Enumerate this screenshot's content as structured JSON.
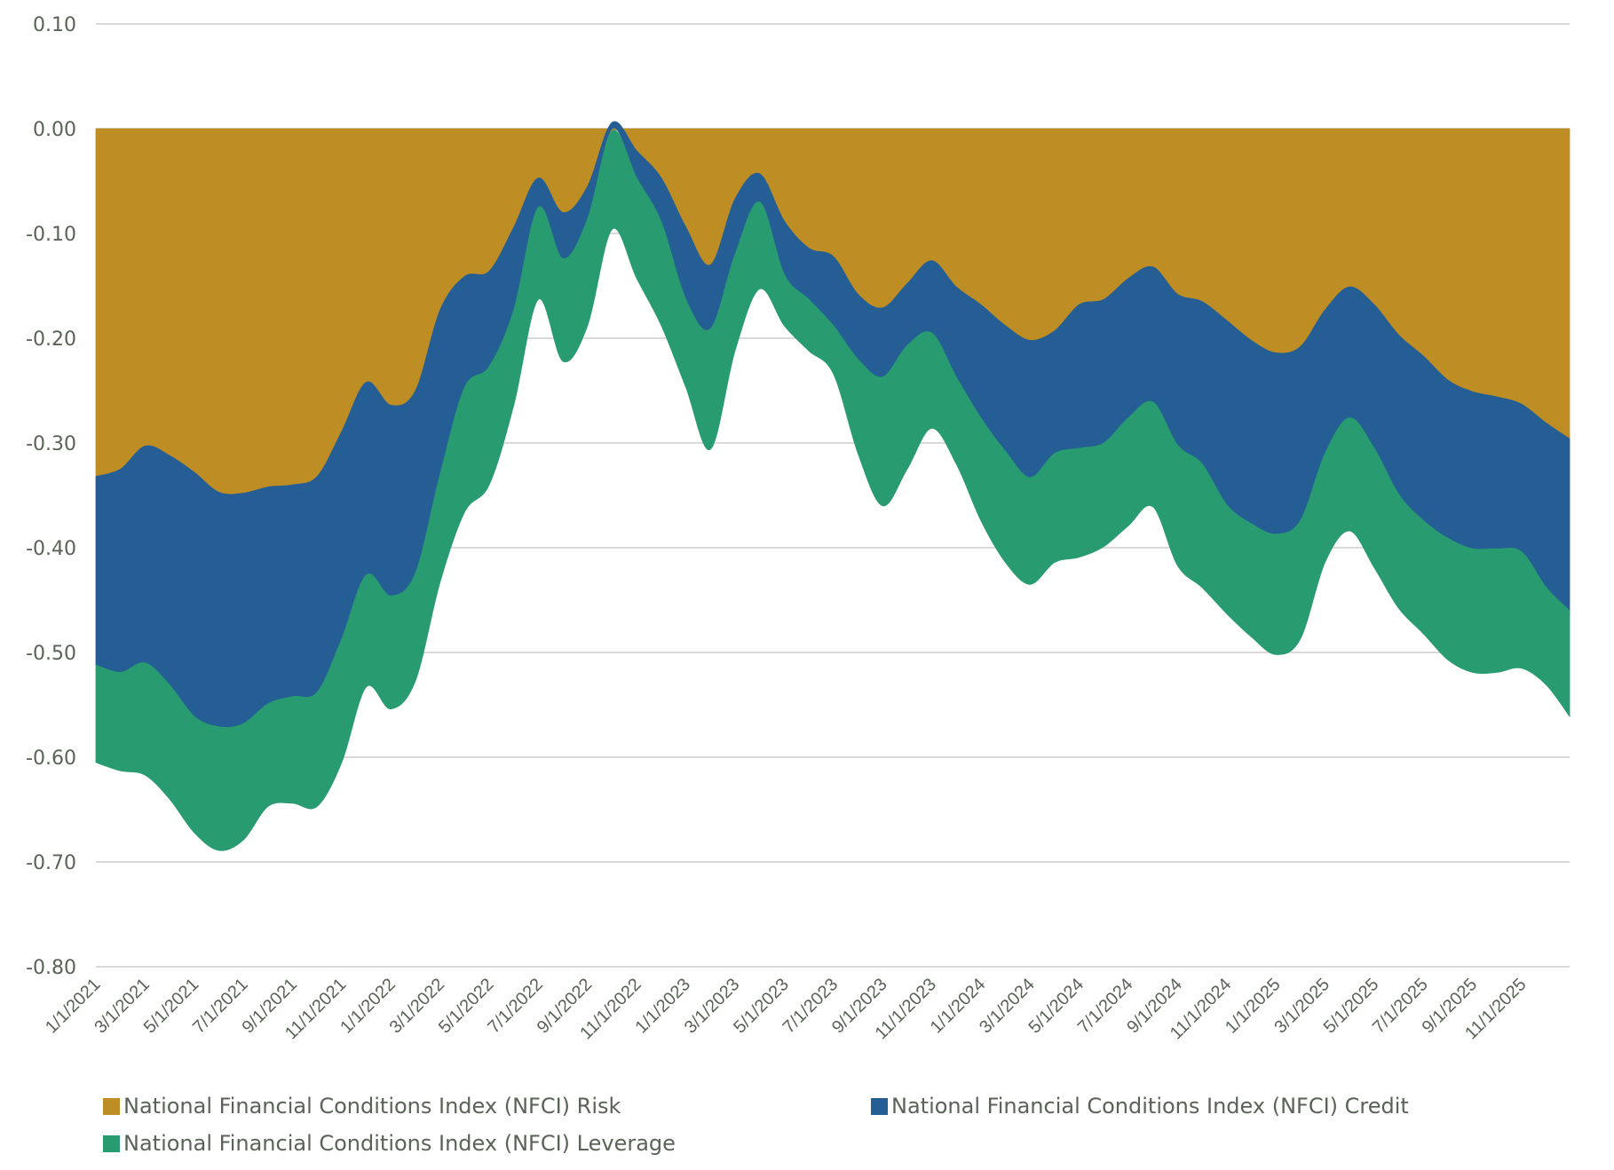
{
  "chart_data": {
    "type": "area",
    "stacked": true,
    "title": "",
    "xlabel": "",
    "ylabel": "",
    "ylim": [
      -0.8,
      0.1
    ],
    "yticks": [
      "0.10",
      "0.00",
      "-0.10",
      "-0.20",
      "-0.30",
      "-0.40",
      "-0.50",
      "-0.60",
      "-0.70",
      "-0.80"
    ],
    "ytick_values": [
      0.1,
      0.0,
      -0.1,
      -0.2,
      -0.3,
      -0.4,
      -0.5,
      -0.6,
      -0.7,
      -0.8
    ],
    "grid": true,
    "legend_position": "bottom",
    "xtick_labels": [
      "1/1/2021",
      "3/1/2021",
      "5/1/2021",
      "7/1/2021",
      "9/1/2021",
      "11/1/2021",
      "1/1/2022",
      "3/1/2022",
      "5/1/2022",
      "7/1/2022",
      "9/1/2022",
      "11/1/2022",
      "1/1/2023",
      "3/1/2023",
      "5/1/2023",
      "7/1/2023",
      "9/1/2023",
      "11/1/2023",
      "1/1/2024",
      "3/1/2024",
      "5/1/2024",
      "7/1/2024",
      "9/1/2024",
      "11/1/2024",
      "1/1/2025",
      "3/1/2025",
      "5/1/2025",
      "7/1/2025",
      "9/1/2025",
      "11/1/2025"
    ],
    "x": [
      "2021-01",
      "2021-02",
      "2021-03",
      "2021-04",
      "2021-05",
      "2021-06",
      "2021-07",
      "2021-08",
      "2021-09",
      "2021-10",
      "2021-11",
      "2021-12",
      "2022-01",
      "2022-02",
      "2022-03",
      "2022-04",
      "2022-05",
      "2022-06",
      "2022-07",
      "2022-08",
      "2022-09",
      "2022-10",
      "2022-11",
      "2022-12",
      "2023-01",
      "2023-02",
      "2023-03",
      "2023-04",
      "2023-05",
      "2023-06",
      "2023-07",
      "2023-08",
      "2023-09",
      "2023-10",
      "2023-11",
      "2023-12",
      "2024-01",
      "2024-02",
      "2024-03",
      "2024-04",
      "2024-05",
      "2024-06",
      "2024-07",
      "2024-08",
      "2024-09",
      "2024-10",
      "2024-11",
      "2024-12",
      "2025-01",
      "2025-02",
      "2025-03",
      "2025-04",
      "2025-05",
      "2025-06",
      "2025-07",
      "2025-08",
      "2025-09",
      "2025-10",
      "2025-11",
      "2025-12",
      "2025-12-end"
    ],
    "series": [
      {
        "name": "National Financial Conditions Index (NFCI) Risk",
        "color": "#BE8E25",
        "values": [
          -0.332,
          -0.325,
          -0.303,
          -0.312,
          -0.328,
          -0.347,
          -0.348,
          -0.342,
          -0.34,
          -0.332,
          -0.289,
          -0.242,
          -0.264,
          -0.25,
          -0.173,
          -0.141,
          -0.136,
          -0.094,
          -0.047,
          -0.08,
          -0.055,
          -0.002,
          -0.021,
          -0.047,
          -0.094,
          -0.13,
          -0.067,
          -0.043,
          -0.088,
          -0.114,
          -0.122,
          -0.158,
          -0.171,
          -0.148,
          -0.126,
          -0.151,
          -0.168,
          -0.188,
          -0.202,
          -0.193,
          -0.168,
          -0.163,
          -0.143,
          -0.132,
          -0.158,
          -0.165,
          -0.183,
          -0.202,
          -0.214,
          -0.208,
          -0.173,
          -0.151,
          -0.168,
          -0.197,
          -0.217,
          -0.24,
          -0.251,
          -0.256,
          -0.263,
          -0.281,
          -0.296
        ]
      },
      {
        "name": "National Financial Conditions Index (NFCI) Credit",
        "color": "#245E94",
        "values": [
          -0.18,
          -0.194,
          -0.207,
          -0.219,
          -0.233,
          -0.224,
          -0.22,
          -0.207,
          -0.202,
          -0.206,
          -0.198,
          -0.184,
          -0.182,
          -0.174,
          -0.157,
          -0.106,
          -0.091,
          -0.079,
          -0.028,
          -0.044,
          -0.031,
          0.006,
          -0.026,
          -0.042,
          -0.069,
          -0.061,
          -0.053,
          -0.027,
          -0.051,
          -0.049,
          -0.066,
          -0.062,
          -0.066,
          -0.059,
          -0.069,
          -0.086,
          -0.108,
          -0.12,
          -0.131,
          -0.117,
          -0.137,
          -0.137,
          -0.133,
          -0.129,
          -0.144,
          -0.155,
          -0.176,
          -0.175,
          -0.173,
          -0.166,
          -0.137,
          -0.125,
          -0.137,
          -0.152,
          -0.157,
          -0.151,
          -0.15,
          -0.145,
          -0.141,
          -0.157,
          -0.164
        ]
      },
      {
        "name": "National Financial Conditions Index (NFCI) Leverage",
        "color": "#289B70",
        "values": [
          -0.093,
          -0.094,
          -0.107,
          -0.109,
          -0.111,
          -0.118,
          -0.111,
          -0.098,
          -0.102,
          -0.109,
          -0.118,
          -0.107,
          -0.108,
          -0.103,
          -0.103,
          -0.119,
          -0.113,
          -0.091,
          -0.088,
          -0.098,
          -0.102,
          -0.094,
          -0.096,
          -0.099,
          -0.084,
          -0.115,
          -0.092,
          -0.083,
          -0.049,
          -0.049,
          -0.046,
          -0.09,
          -0.123,
          -0.118,
          -0.091,
          -0.083,
          -0.098,
          -0.106,
          -0.102,
          -0.104,
          -0.104,
          -0.099,
          -0.103,
          -0.1,
          -0.115,
          -0.118,
          -0.104,
          -0.108,
          -0.115,
          -0.113,
          -0.104,
          -0.108,
          -0.114,
          -0.109,
          -0.108,
          -0.116,
          -0.118,
          -0.118,
          -0.111,
          -0.093,
          -0.101
        ]
      }
    ]
  },
  "legend": {
    "items": [
      {
        "label": "National Financial Conditions Index (NFCI) Risk",
        "color": "#BE8E25"
      },
      {
        "label": "National Financial Conditions Index (NFCI) Credit",
        "color": "#245E94"
      },
      {
        "label": "National Financial Conditions Index (NFCI) Leverage",
        "color": "#289B70"
      }
    ]
  }
}
